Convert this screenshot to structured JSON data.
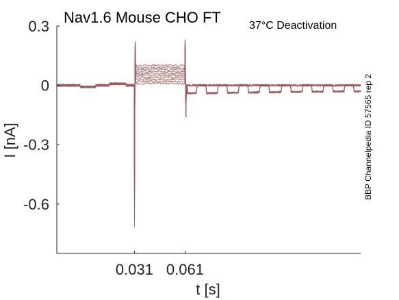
{
  "chart_data": {
    "type": "line",
    "title": "Nav1.6  Mouse  CHO FT",
    "annotation": "37°C  Deactivation",
    "side_label": "BBP Channelpedia ID 57565 rep 2",
    "xlabel": "t [s]",
    "ylabel": "I [nA]",
    "xlim": [
      -0.015,
      0.165
    ],
    "ylim": [
      -0.85,
      0.3
    ],
    "x_ticks": [
      {
        "value": 0.031,
        "label": "0.031"
      },
      {
        "value": 0.061,
        "label": "0.061"
      }
    ],
    "y_ticks": [
      {
        "value": 0.3,
        "label": "0.3"
      },
      {
        "value": 0.0,
        "label": "0"
      },
      {
        "value": -0.3,
        "label": "-0.3"
      },
      {
        "value": -0.6,
        "label": "-0.6"
      }
    ],
    "grid": false,
    "color": "#9c5a5a",
    "protocol": {
      "holding_current": 0.0,
      "activation_peak": -0.75,
      "step_start": 0.031,
      "step_end": 0.061,
      "step_levels": [
        0.01,
        0.02,
        0.03,
        0.04,
        0.05,
        0.06,
        0.07,
        0.08,
        0.09,
        0.1
      ],
      "post_step_levels": [
        0.0,
        -0.05
      ]
    }
  }
}
